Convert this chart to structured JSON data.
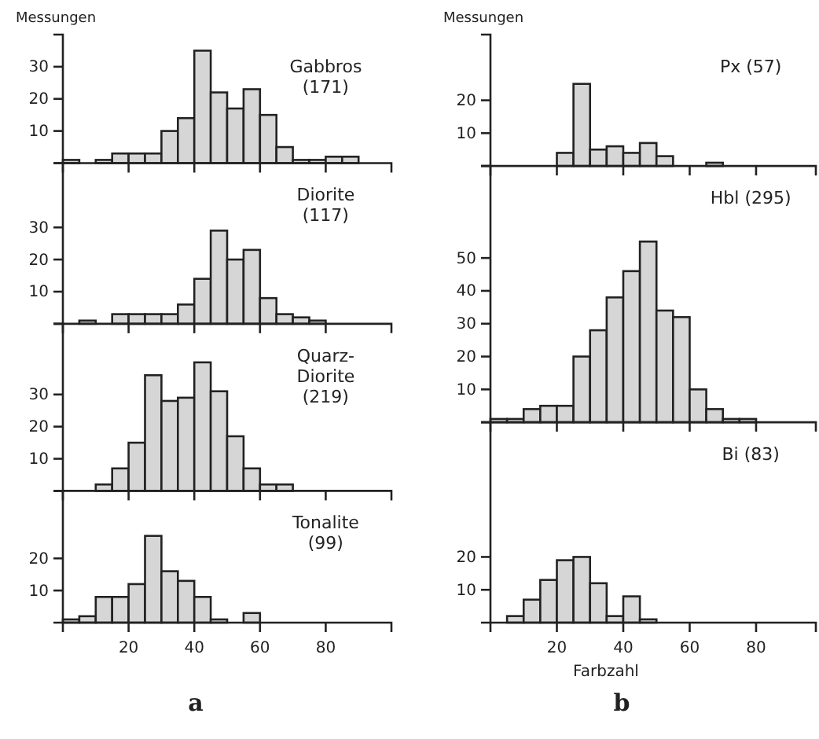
{
  "chart_data": [
    {
      "type": "histogram",
      "title": "Gabbros (171)",
      "ylabel": "Messungen",
      "bins": [
        0,
        5,
        10,
        15,
        20,
        25,
        30,
        35,
        40,
        45,
        50,
        55,
        60,
        65,
        70,
        75,
        80,
        85,
        90
      ],
      "values": [
        1,
        0,
        1,
        3,
        3,
        3,
        10,
        14,
        35,
        22,
        17,
        23,
        15,
        5,
        1,
        1,
        2,
        2
      ],
      "color": "#d6d6d6",
      "xlim": [
        0,
        100
      ],
      "xticks": [
        20,
        40,
        60,
        80
      ],
      "ylim": [
        0,
        40
      ],
      "yticks": [
        10,
        20,
        30
      ],
      "tick_labels": "y",
      "grid": false
    },
    {
      "type": "histogram",
      "title": "Diorite (117)",
      "bins": [
        0,
        5,
        10,
        15,
        20,
        25,
        30,
        35,
        40,
        45,
        50,
        55,
        60,
        65,
        70,
        75,
        80
      ],
      "values": [
        0,
        1,
        0,
        3,
        3,
        3,
        3,
        6,
        14,
        29,
        20,
        23,
        8,
        3,
        2,
        1
      ],
      "color": "#d6d6d6",
      "xlim": [
        0,
        100
      ],
      "xticks": [
        20,
        40,
        60,
        80
      ],
      "ylim": [
        0,
        50
      ],
      "yticks": [
        10,
        20,
        30
      ],
      "tick_labels": "y",
      "grid": false
    },
    {
      "type": "histogram",
      "title": "Quarz-Diorite (219)",
      "bins": [
        10,
        15,
        20,
        25,
        30,
        35,
        40,
        45,
        50,
        55,
        60,
        65,
        70
      ],
      "values": [
        2,
        7,
        15,
        36,
        28,
        29,
        40,
        31,
        17,
        7,
        2,
        2
      ],
      "color": "#d6d6d6",
      "xlim": [
        0,
        100
      ],
      "xticks": [
        20,
        40,
        60,
        80
      ],
      "ylim": [
        0,
        52
      ],
      "yticks": [
        10,
        20,
        30
      ],
      "tick_labels": "y",
      "grid": false
    },
    {
      "type": "histogram",
      "title": "Tonalite (99)",
      "annotations": [
        "a"
      ],
      "bins": [
        0,
        5,
        10,
        15,
        20,
        25,
        30,
        35,
        40,
        45,
        50,
        55,
        60
      ],
      "values": [
        1,
        2,
        8,
        8,
        12,
        27,
        16,
        13,
        8,
        1,
        0,
        3
      ],
      "color": "#d6d6d6",
      "xlim": [
        0,
        100
      ],
      "xticks": [
        20,
        40,
        60,
        80
      ],
      "ylim": [
        0,
        41
      ],
      "yticks": [
        10,
        20
      ],
      "grid": false
    },
    {
      "type": "histogram",
      "title": "Px (57)",
      "ylabel": "Messungen",
      "bins": [
        20,
        25,
        30,
        35,
        40,
        45,
        50,
        55,
        60,
        65,
        70
      ],
      "values": [
        4,
        25,
        5,
        6,
        4,
        7,
        3,
        0,
        0,
        1
      ],
      "color": "#d6d6d6",
      "xlim": [
        0,
        98
      ],
      "xticks": [
        20,
        40,
        60,
        80
      ],
      "ylim": [
        0,
        40
      ],
      "yticks": [
        10,
        20
      ],
      "tick_labels": "y",
      "grid": false
    },
    {
      "type": "histogram",
      "title": "Hbl (295)",
      "bins": [
        0,
        5,
        10,
        15,
        20,
        25,
        30,
        35,
        40,
        45,
        50,
        55,
        60,
        65,
        70,
        75,
        80
      ],
      "values": [
        1,
        1,
        4,
        5,
        5,
        20,
        28,
        38,
        46,
        55,
        34,
        32,
        10,
        4,
        1,
        1
      ],
      "color": "#d6d6d6",
      "xlim": [
        0,
        98
      ],
      "xticks": [
        20,
        40,
        60,
        80
      ],
      "ylim": [
        0,
        78
      ],
      "yticks": [
        10,
        20,
        30,
        40,
        50
      ],
      "tick_labels": "y",
      "grid": false
    },
    {
      "type": "histogram",
      "title": "Bi (83)",
      "xlabel": "Farbzahl",
      "annotations": [
        "b"
      ],
      "bins": [
        5,
        10,
        15,
        20,
        25,
        30,
        35,
        40,
        45,
        50
      ],
      "values": [
        2,
        7,
        13,
        19,
        20,
        12,
        2,
        8,
        1
      ],
      "color": "#d6d6d6",
      "xlim": [
        0,
        98
      ],
      "xticks": [
        20,
        40,
        60,
        80
      ],
      "ylim": [
        0,
        61
      ],
      "yticks": [
        10,
        20
      ],
      "grid": false
    }
  ]
}
